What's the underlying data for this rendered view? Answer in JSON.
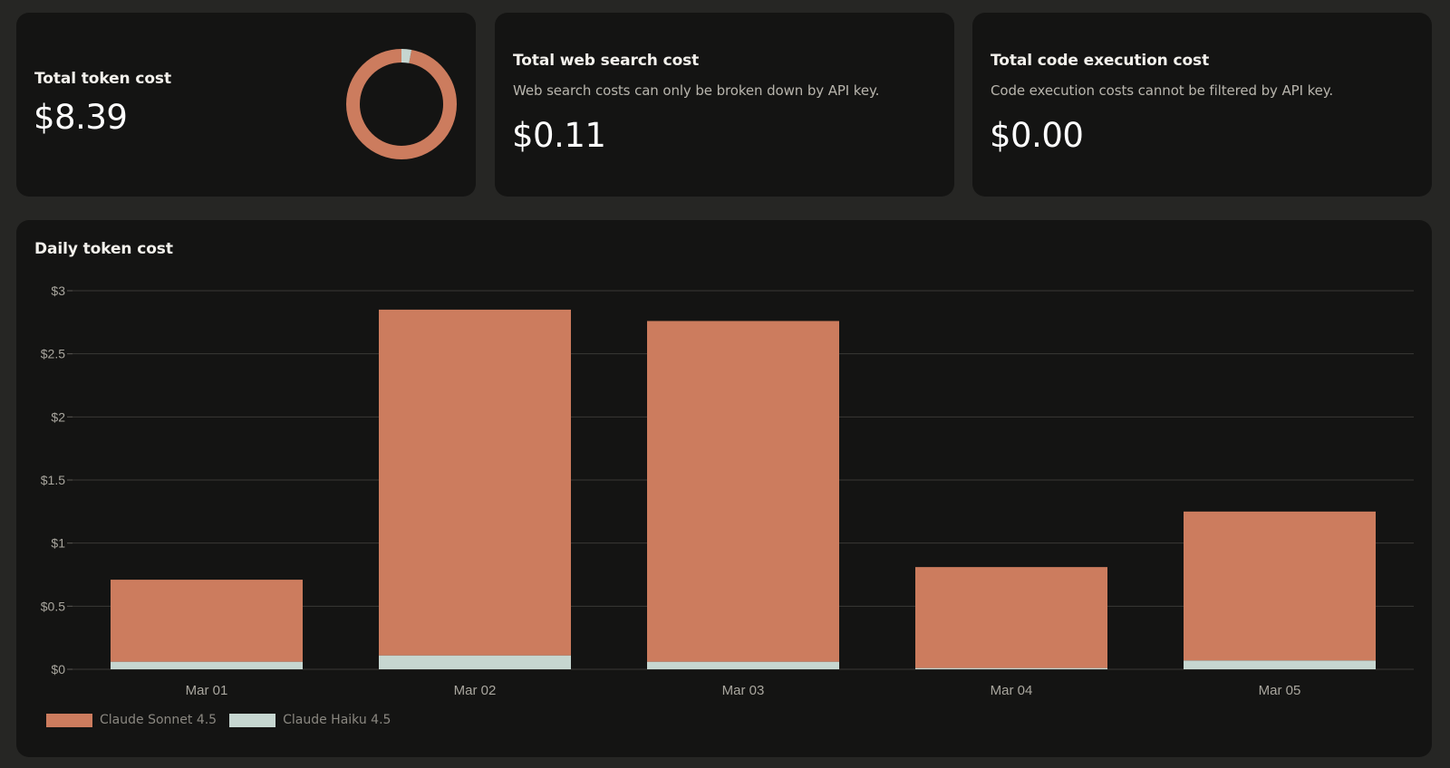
{
  "cards": {
    "token": {
      "title": "Total token cost",
      "value": "$8.39",
      "donut": {
        "segments": [
          {
            "name": "Claude Sonnet 4.5",
            "share": 0.97,
            "color": "#cc7c5e"
          },
          {
            "name": "Claude Haiku 4.5",
            "share": 0.03,
            "color": "#c6d6d0"
          }
        ]
      }
    },
    "web_search": {
      "title": "Total web search cost",
      "subtitle": "Web search costs can only be broken down by API key.",
      "value": "$0.11"
    },
    "code_exec": {
      "title": "Total code execution cost",
      "subtitle": "Code execution costs cannot be filtered by API key.",
      "value": "$0.00"
    }
  },
  "daily": {
    "title": "Daily token cost"
  },
  "chart_data": {
    "type": "bar",
    "stacked": true,
    "title": "Daily token cost",
    "categories": [
      "Mar 01",
      "Mar 02",
      "Mar 03",
      "Mar 04",
      "Mar 05"
    ],
    "series": [
      {
        "name": "Claude Haiku 4.5",
        "color": "#c6d6d0",
        "values": [
          0.06,
          0.11,
          0.06,
          0.01,
          0.07
        ]
      },
      {
        "name": "Claude Sonnet 4.5",
        "color": "#cc7c5e",
        "values": [
          0.65,
          2.74,
          2.7,
          0.8,
          1.18
        ]
      }
    ],
    "ylim": [
      0,
      3
    ],
    "yticks": [
      0,
      0.5,
      1,
      1.5,
      2,
      2.5,
      3
    ],
    "ytick_labels": [
      "$0",
      "$0.5",
      "$1",
      "$1.5",
      "$2",
      "$2.5",
      "$3"
    ],
    "legend": [
      {
        "name": "Claude Sonnet 4.5",
        "color": "#cc7c5e"
      },
      {
        "name": "Claude Haiku 4.5",
        "color": "#c6d6d0"
      }
    ],
    "legend_position": "bottom-left",
    "grid": true
  }
}
